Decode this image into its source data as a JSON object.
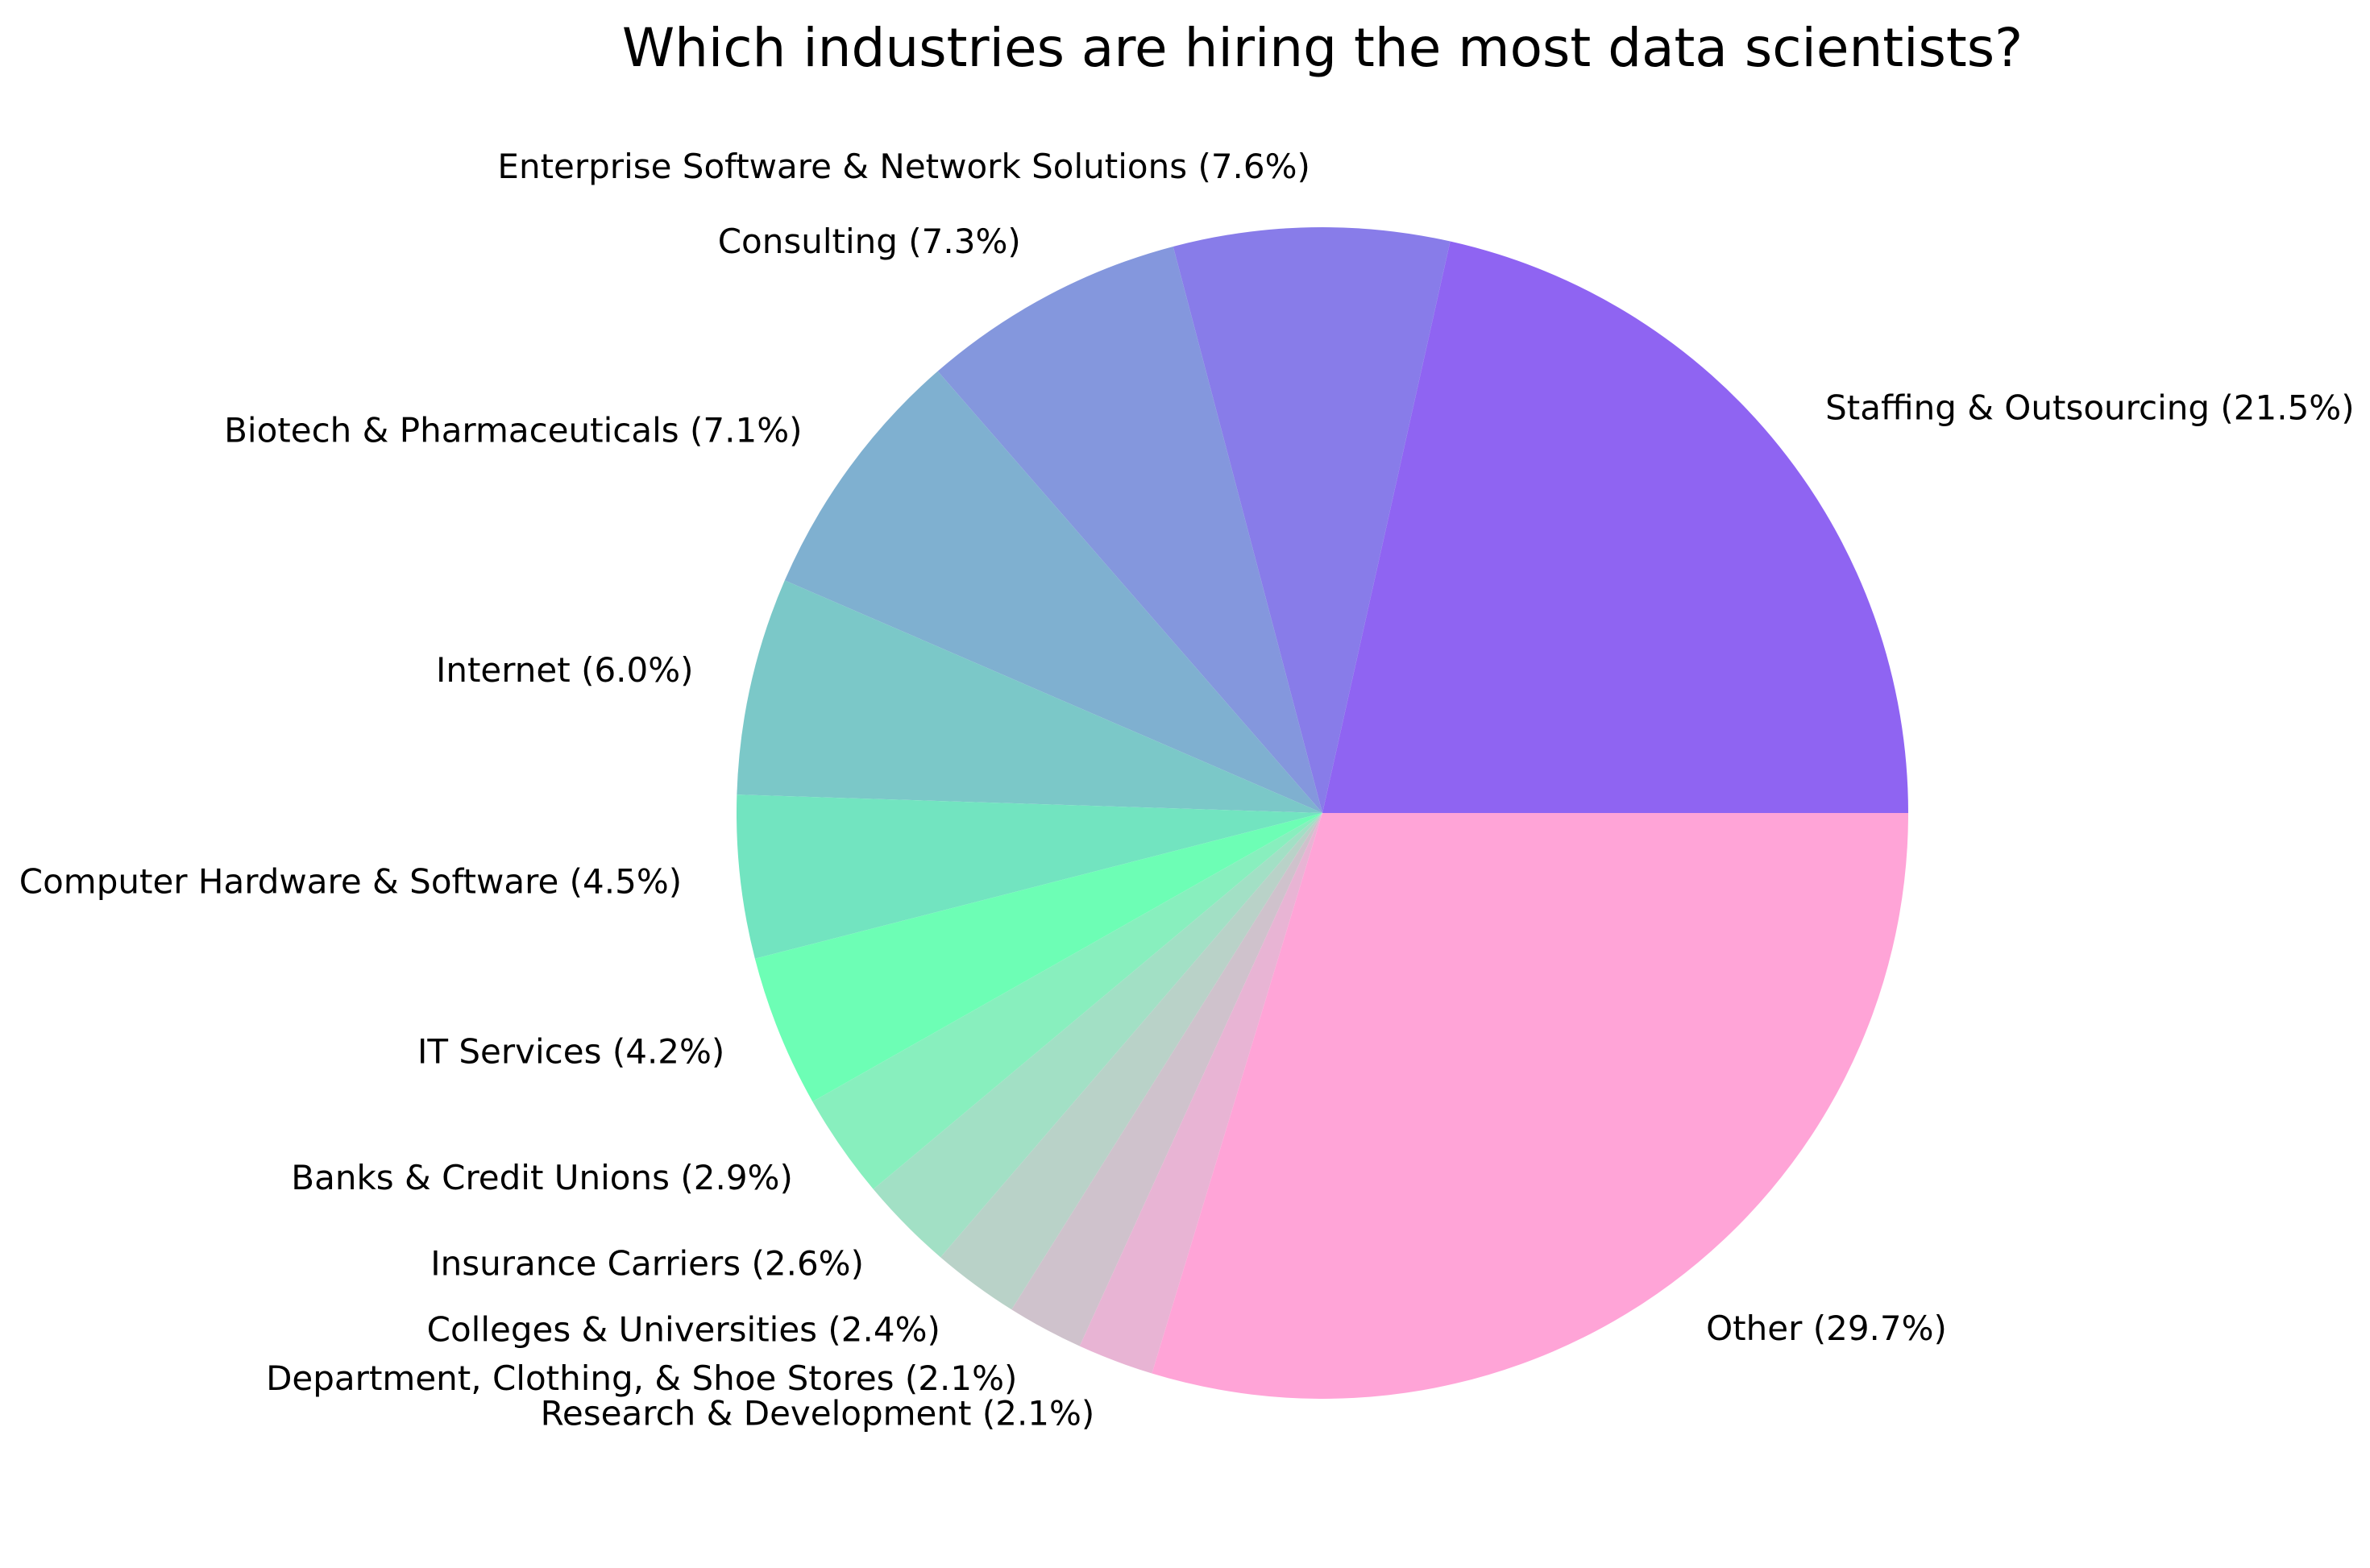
{
  "chart_data": {
    "type": "pie",
    "title": "Which industries are hiring the most data scientists?",
    "slices": [
      {
        "label": "Staffing & Outsourcing (21.5%)",
        "value": 21.5,
        "color": "#8f64f2"
      },
      {
        "label": "Enterprise Software & Network Solutions (7.6%)",
        "value": 7.6,
        "color": "#887ce9"
      },
      {
        "label": "Consulting (7.3%)",
        "value": 7.3,
        "color": "#8497dd"
      },
      {
        "label": "Biotech & Pharmaceuticals (7.1%)",
        "value": 7.1,
        "color": "#7fb0d0"
      },
      {
        "label": "Internet (6.0%)",
        "value": 6.0,
        "color": "#7bc8c8"
      },
      {
        "label": "Computer Hardware & Software (4.5%)",
        "value": 4.5,
        "color": "#72e4c0"
      },
      {
        "label": "IT Services (4.2%)",
        "value": 4.2,
        "color": "#6dfeb5"
      },
      {
        "label": "Banks & Credit Unions (2.9%)",
        "value": 2.9,
        "color": "#88efbe"
      },
      {
        "label": "Insurance Carriers (2.6%)",
        "value": 2.6,
        "color": "#a2e0c5"
      },
      {
        "label": "Colleges & Universities (2.4%)",
        "value": 2.4,
        "color": "#b9d2c8"
      },
      {
        "label": "Department, Clothing, & Shoe Stores (2.1%)",
        "value": 2.1,
        "color": "#cfc2cc"
      },
      {
        "label": "Research & Development (2.1%)",
        "value": 2.1,
        "color": "#e8b4d4"
      },
      {
        "label": "Other (29.7%)",
        "value": 29.7,
        "color": "#ffa4d7"
      }
    ],
    "start_angle_deg": 0,
    "direction": "counterclockwise"
  }
}
